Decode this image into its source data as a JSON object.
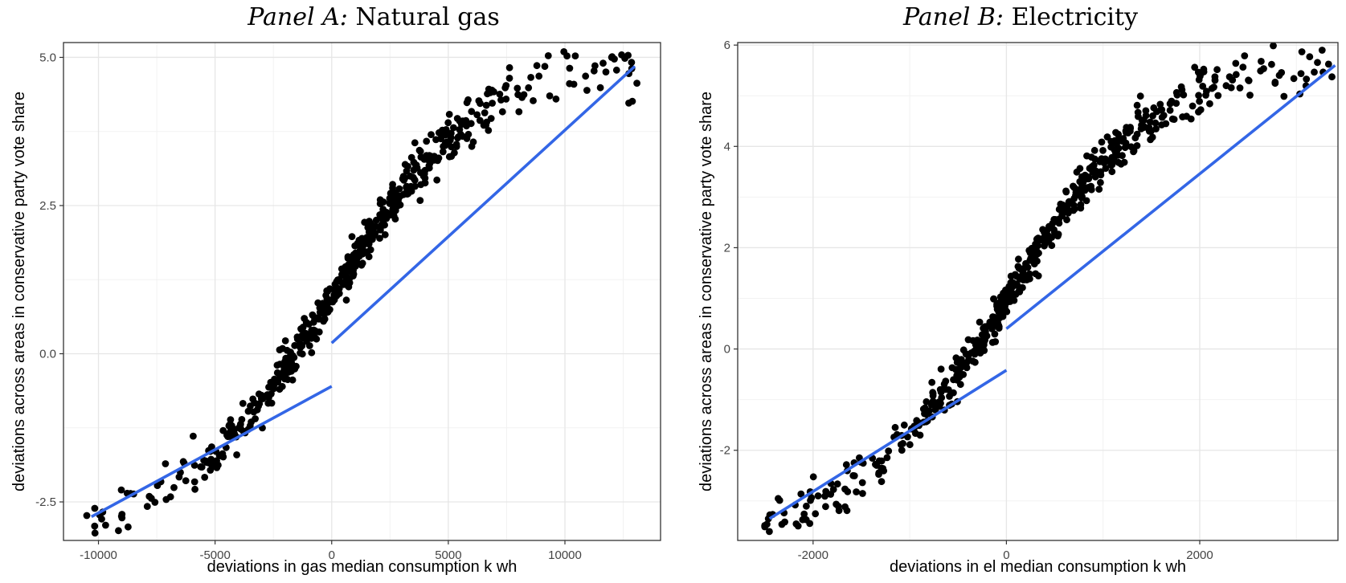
{
  "chart_data": [
    {
      "type": "scatter",
      "title_prefix": "Panel A:",
      "title": "Natural gas",
      "xlabel": "deviations in gas median consumption k wh",
      "ylabel": "deviations across areas in conservative party vote share",
      "xlim": [
        -11500,
        14100
      ],
      "ylim": [
        -3.15,
        5.25
      ],
      "x_ticks": [
        -10000,
        -5000,
        0,
        5000,
        10000
      ],
      "x_tick_labels": [
        "-10000",
        "-5000",
        "0",
        "5000",
        "10000"
      ],
      "y_ticks": [
        -2.5,
        0.0,
        2.5,
        5.0
      ],
      "y_tick_labels": [
        "-2.5",
        "0.0",
        "2.5",
        "5.0"
      ],
      "grid": true,
      "point_color": "#000000",
      "line_color": "#3366e6",
      "fit_lines": [
        {
          "x": [
            -10300,
            0
          ],
          "y": [
            -2.75,
            -0.55
          ]
        },
        {
          "x": [
            0,
            13000
          ],
          "y": [
            0.18,
            4.85
          ]
        }
      ],
      "scatter_model": {
        "n": 560,
        "x": [
          -10500,
          13100
        ],
        "seed": 11,
        "noise": 0.22
      }
    },
    {
      "type": "scatter",
      "title_prefix": "Panel B:",
      "title": "Electricity",
      "xlabel": "deviations in el median consumption k wh",
      "ylabel": "deviations across areas in conservative party vote share",
      "xlim": [
        -2780,
        3430
      ],
      "ylim": [
        -3.78,
        6.05
      ],
      "x_ticks": [
        -2000,
        0,
        2000
      ],
      "x_tick_labels": [
        "-2000",
        "0",
        "2000"
      ],
      "y_ticks": [
        -2,
        0,
        2,
        4,
        6
      ],
      "y_tick_labels": [
        "-2",
        "0",
        "2",
        "4",
        "6"
      ],
      "grid": true,
      "point_color": "#000000",
      "line_color": "#3366e6",
      "fit_lines": [
        {
          "x": [
            -2450,
            0
          ],
          "y": [
            -3.35,
            -0.42
          ]
        },
        {
          "x": [
            0,
            3400
          ],
          "y": [
            0.4,
            5.6
          ]
        }
      ],
      "scatter_model": {
        "n": 560,
        "x": [
          -2500,
          3390
        ],
        "seed": 23,
        "noise": 0.24
      }
    }
  ]
}
